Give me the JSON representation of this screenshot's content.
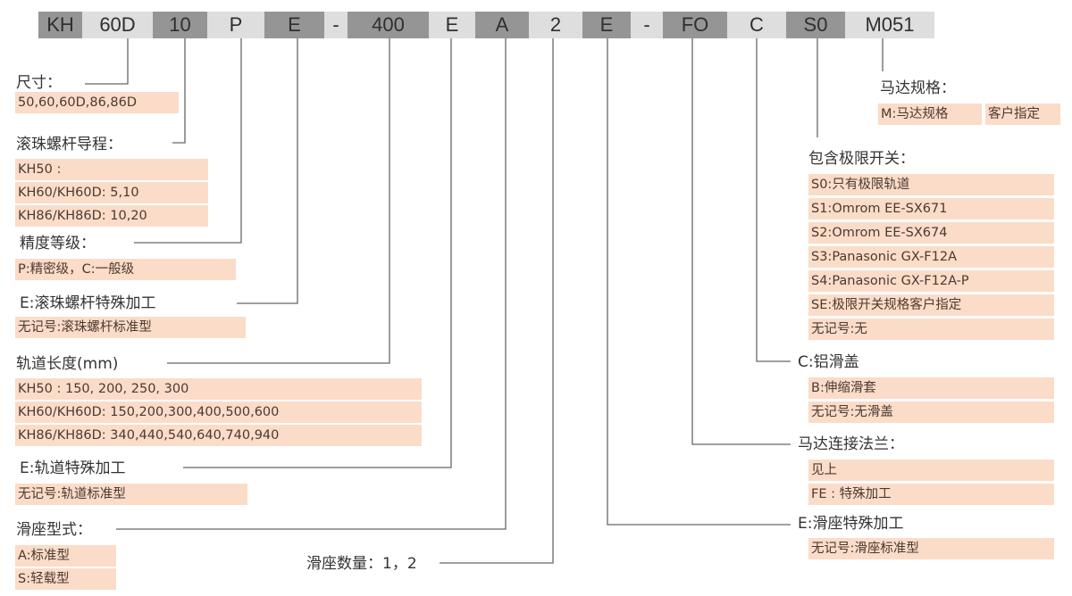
{
  "code_segments": [
    "KH",
    "60D",
    "10",
    "P",
    "E",
    "-",
    "400",
    "E",
    "A",
    "2",
    "E",
    "-",
    "FO",
    "C",
    "S0",
    "M051"
  ],
  "colors": {
    "dark_segment": "#959595",
    "light_segment": "#dedede",
    "option_bg": "#fbdcc8",
    "line": "#555555"
  },
  "left": {
    "size": {
      "title": "尺寸：",
      "options": [
        "50,60,60D,86,86D"
      ]
    },
    "lead": {
      "title": "滚珠螺杆导程：",
      "options": [
        "KH50 :",
        "KH60/KH60D: 5,10",
        "KH86/KH86D: 10,20"
      ]
    },
    "precision": {
      "title": "精度等级：",
      "options": [
        "P:精密级，C:一般级"
      ]
    },
    "screw_special": {
      "title": "E:滚珠螺杆特殊加工",
      "options": [
        "无记号:滚珠螺杆标准型"
      ]
    },
    "rail_length": {
      "title": "轨道长度(mm)",
      "options": [
        "KH50 : 150, 200, 250, 300",
        "KH60/KH60D: 150,200,300,400,500,600",
        "KH86/KH86D: 340,440,540,640,740,940"
      ]
    },
    "rail_special": {
      "title": "E:轨道特殊加工",
      "options": [
        "无记号:轨道标准型"
      ]
    },
    "slider_type": {
      "title": "滑座型式：",
      "options": [
        "A:标准型",
        "S:轻载型"
      ]
    },
    "slider_count": {
      "title": "滑座数量：1，2"
    }
  },
  "right": {
    "motor_spec": {
      "title": "马达规格：",
      "options": [
        "M:马达规格",
        "客户指定"
      ]
    },
    "limit_switch": {
      "title": "包含极限开关：",
      "options": [
        "S0:只有极限轨道",
        "S1:Omrom EE-SX671",
        "S2:Omrom EE-SX674",
        "S3:Panasonic GX-F12A",
        "S4:Panasonic GX-F12A-P",
        "SE:极限开关规格客户指定",
        "无记号:无"
      ]
    },
    "cover": {
      "title": "C:铝滑盖",
      "options": [
        "B:伸缩滑套",
        "无记号:无滑盖"
      ]
    },
    "flange": {
      "title": "马达连接法兰：",
      "options": [
        "见上",
        "FE : 特殊加工"
      ]
    },
    "slider_special": {
      "title": "E:滑座特殊加工",
      "options": [
        "无记号:滑座标准型"
      ]
    }
  }
}
